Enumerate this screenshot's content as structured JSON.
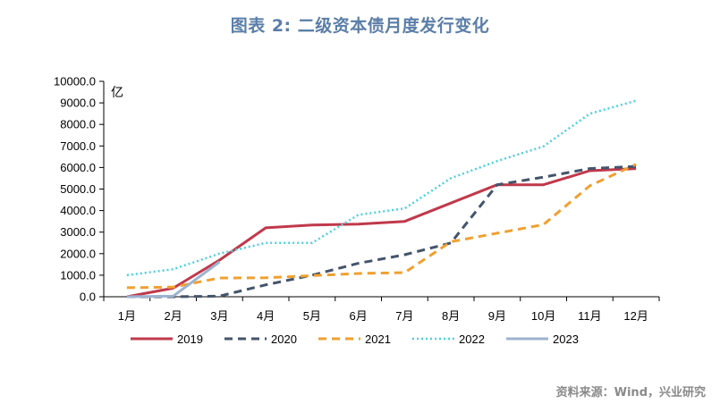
{
  "title": "图表 2:  二级资本债月度发行变化",
  "source": "资料来源：Wind，兴业研究",
  "chart_data": {
    "type": "line",
    "title": "图表 2:  二级资本债月度发行变化",
    "ylabel": "亿",
    "ylim": [
      0,
      10000
    ],
    "yticks": [
      "0.0",
      "1000.0",
      "2000.0",
      "3000.0",
      "4000.0",
      "5000.0",
      "6000.0",
      "7000.0",
      "8000.0",
      "9000.0",
      "10000.0"
    ],
    "categories": [
      "1月",
      "2月",
      "3月",
      "4月",
      "5月",
      "6月",
      "7月",
      "8月",
      "9月",
      "10月",
      "11月",
      "12月"
    ],
    "legend_position": "bottom",
    "series": [
      {
        "name": "2019",
        "color": "#c0394b",
        "style": "solid",
        "values": [
          0,
          400,
          1700,
          3200,
          3330,
          3370,
          3500,
          4350,
          5200,
          5200,
          5850,
          5950
        ]
      },
      {
        "name": "2020",
        "color": "#44546a",
        "style": "dashed",
        "values": [
          0,
          0,
          30,
          550,
          1000,
          1550,
          1950,
          2500,
          5200,
          5550,
          5950,
          6050
        ]
      },
      {
        "name": "2021",
        "color": "#f0a030",
        "style": "dashed",
        "values": [
          420,
          450,
          870,
          880,
          980,
          1080,
          1120,
          2550,
          2950,
          3350,
          5150,
          6150
        ]
      },
      {
        "name": "2022",
        "color": "#4dd0e1",
        "style": "dotted",
        "values": [
          1000,
          1280,
          2000,
          2500,
          2500,
          3800,
          4100,
          5500,
          6300,
          6980,
          8500,
          9100
        ]
      },
      {
        "name": "2023",
        "color": "#9db3cf",
        "style": "solid",
        "values": [
          0,
          30,
          1620,
          null,
          null,
          null,
          null,
          null,
          null,
          null,
          null,
          null
        ]
      }
    ]
  }
}
